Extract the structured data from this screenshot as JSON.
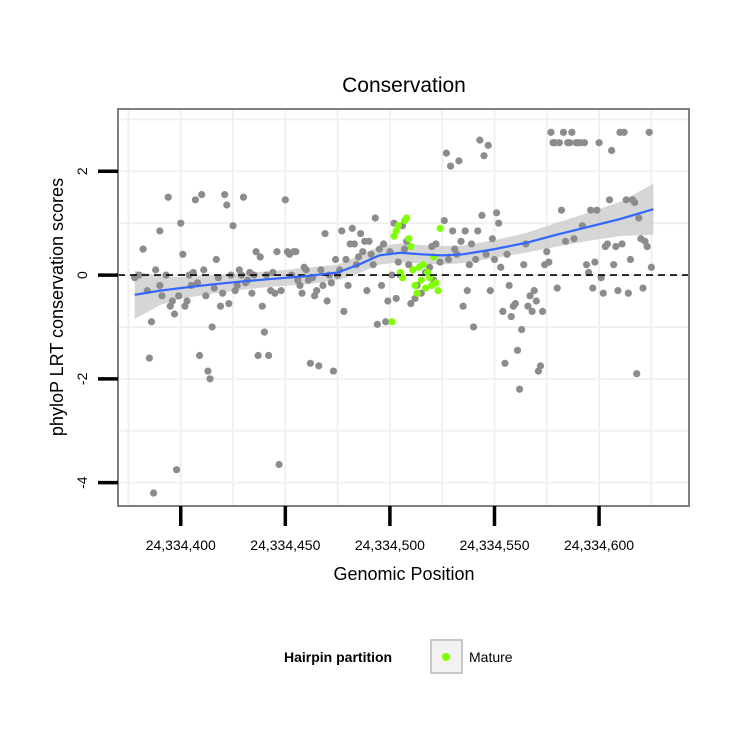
{
  "chart_data": {
    "type": "scatter",
    "title": "Conservation",
    "xlabel": "Genomic Position",
    "ylabel": "phyloP LRT conservation scores",
    "xlim": [
      24334370,
      24334643
    ],
    "ylim": [
      -4.45,
      3.2
    ],
    "x_ticks": [
      24334400,
      24334450,
      24334500,
      24334550,
      24334600
    ],
    "x_tick_labels": [
      "24,334,400",
      "24,334,450",
      "24,334,500",
      "24,334,550",
      "24,334,600"
    ],
    "y_ticks": [
      2,
      0,
      -2,
      -4
    ],
    "y_tick_labels": [
      "2",
      "0",
      "-2",
      "-4"
    ],
    "grid": true,
    "reference_line": {
      "y": 0,
      "style": "dashed"
    },
    "legend": {
      "title": "Hairpin partition",
      "position": "bottom",
      "entries": [
        "Mature"
      ]
    },
    "colors": {
      "other": "#8c8c8c",
      "mature": "#7fff00",
      "smooth": "#3366ff",
      "ribbon": "#cccccc",
      "panel_border": "#7f7f7f",
      "grid": "#f0f0f0"
    },
    "series": [
      {
        "name": "",
        "points": [
          [
            24334382,
            0.5
          ],
          [
            24334384,
            -0.3
          ],
          [
            24334385,
            -1.6
          ],
          [
            24334386,
            -0.9
          ],
          [
            24334388,
            0.1
          ],
          [
            24334390,
            0.85
          ],
          [
            24334390,
            -0.2
          ],
          [
            24334391,
            -0.4
          ],
          [
            24334393,
            0
          ],
          [
            24334394,
            1.5
          ],
          [
            24334395,
            -0.6
          ],
          [
            24334396,
            -0.5
          ],
          [
            24334397,
            -0.75
          ],
          [
            24334398,
            -3.75
          ],
          [
            24334399,
            -0.4
          ],
          [
            24334400,
            1
          ],
          [
            24334401,
            0.4
          ],
          [
            24334402,
            -0.6
          ],
          [
            24334404,
            0
          ],
          [
            24334405,
            -0.2
          ],
          [
            24334406,
            0.05
          ],
          [
            24334407,
            1.45
          ],
          [
            24334408,
            -0.15
          ],
          [
            24334409,
            -1.55
          ],
          [
            24334410,
            1.55
          ],
          [
            24334411,
            0.1
          ],
          [
            24334412,
            -0.4
          ],
          [
            24334413,
            -1.85
          ],
          [
            24334414,
            -2
          ],
          [
            24334415,
            -1
          ],
          [
            24334416,
            -0.25
          ],
          [
            24334417,
            0.3
          ],
          [
            24334418,
            -0.05
          ],
          [
            24334419,
            -0.6
          ],
          [
            24334420,
            -0.35
          ],
          [
            24334421,
            1.55
          ],
          [
            24334422,
            1.35
          ],
          [
            24334423,
            -0.55
          ],
          [
            24334424,
            0
          ],
          [
            24334425,
            0.95
          ],
          [
            24334426,
            -0.3
          ],
          [
            24334427,
            -0.2
          ],
          [
            24334428,
            0.1
          ],
          [
            24334429,
            0
          ],
          [
            24334430,
            1.5
          ],
          [
            24334431,
            -0.15
          ],
          [
            24334432,
            -0.1
          ],
          [
            24334434,
            -0.35
          ],
          [
            24334435,
            0
          ],
          [
            24334436,
            0.45
          ],
          [
            24334437,
            -1.55
          ],
          [
            24334438,
            0.35
          ],
          [
            24334439,
            -0.6
          ],
          [
            24334440,
            -1.1
          ],
          [
            24334441,
            0
          ],
          [
            24334442,
            -1.55
          ],
          [
            24334443,
            -0.3
          ],
          [
            24334445,
            -0.35
          ],
          [
            24334446,
            0.45
          ],
          [
            24334447,
            -3.65
          ],
          [
            24334448,
            -0.3
          ],
          [
            24334450,
            1.45
          ],
          [
            24334451,
            0.45
          ],
          [
            24334452,
            0.4
          ],
          [
            24334453,
            0
          ],
          [
            24334454,
            0.45
          ],
          [
            24334455,
            0.45
          ],
          [
            24334456,
            -0.1
          ],
          [
            24334457,
            -0.2
          ],
          [
            24334458,
            -0.35
          ],
          [
            24334459,
            0.15
          ],
          [
            24334460,
            0.1
          ],
          [
            24334461,
            -0.1
          ],
          [
            24334462,
            -1.7
          ],
          [
            24334463,
            -0.05
          ],
          [
            24334464,
            -0.4
          ],
          [
            24334465,
            -0.3
          ],
          [
            24334466,
            -1.75
          ],
          [
            24334467,
            0.1
          ],
          [
            24334468,
            -0.2
          ],
          [
            24334469,
            0.8
          ],
          [
            24334470,
            -0.5
          ],
          [
            24334472,
            -0.15
          ],
          [
            24334473,
            -1.85
          ],
          [
            24334474,
            0.3
          ],
          [
            24334475,
            0
          ],
          [
            24334476,
            0.1
          ],
          [
            24334477,
            0.85
          ],
          [
            24334478,
            -0.7
          ],
          [
            24334479,
            0.3
          ],
          [
            24334480,
            -0.2
          ],
          [
            24334482,
            0.9
          ],
          [
            24334484,
            0.2
          ],
          [
            24334485,
            0.35
          ],
          [
            24334486,
            0.8
          ],
          [
            24334487,
            0.45
          ],
          [
            24334488,
            0.65
          ],
          [
            24334489,
            -0.3
          ],
          [
            24334490,
            0.65
          ],
          [
            24334491,
            0.4
          ],
          [
            24334492,
            0.2
          ],
          [
            24334493,
            1.1
          ],
          [
            24334494,
            -0.95
          ],
          [
            24334495,
            0.5
          ],
          [
            24334496,
            -0.2
          ],
          [
            24334497,
            0.6
          ],
          [
            24334498,
            -0.9
          ],
          [
            24334499,
            -0.5
          ],
          [
            24334500,
            0.45
          ],
          [
            24334501,
            0
          ],
          [
            24334502,
            1
          ],
          [
            24334503,
            -0.45
          ],
          [
            24334504,
            0.25
          ],
          [
            24334505,
            0
          ],
          [
            24334506,
            0.95
          ],
          [
            24334507,
            0.5
          ],
          [
            24334508,
            0.65
          ],
          [
            24334509,
            0.2
          ],
          [
            24334510,
            -0.55
          ],
          [
            24334511,
            0.1
          ],
          [
            24334513,
            -0.2
          ],
          [
            24334515,
            -0.35
          ],
          [
            24334517,
            0.05
          ],
          [
            24334519,
            0.15
          ],
          [
            24334520,
            0.55
          ],
          [
            24334521,
            -0.1
          ],
          [
            24334522,
            0.6
          ],
          [
            24334524,
            0.25
          ],
          [
            24334526,
            1.05
          ],
          [
            24334527,
            2.35
          ],
          [
            24334528,
            0.3
          ],
          [
            24334529,
            2.1
          ],
          [
            24334530,
            0.85
          ],
          [
            24334531,
            0.5
          ],
          [
            24334532,
            0.4
          ],
          [
            24334533,
            2.2
          ],
          [
            24334534,
            0.65
          ],
          [
            24334535,
            -0.6
          ],
          [
            24334536,
            0.85
          ],
          [
            24334537,
            -0.3
          ],
          [
            24334538,
            0.2
          ],
          [
            24334539,
            0.6
          ],
          [
            24334540,
            -1
          ],
          [
            24334541,
            0.3
          ],
          [
            24334542,
            0.85
          ],
          [
            24334543,
            2.6
          ],
          [
            24334544,
            1.15
          ],
          [
            24334545,
            2.3
          ],
          [
            24334546,
            0.4
          ],
          [
            24334547,
            2.5
          ],
          [
            24334548,
            -0.3
          ],
          [
            24334549,
            0.7
          ],
          [
            24334550,
            0.3
          ],
          [
            24334551,
            1.2
          ],
          [
            24334552,
            1
          ],
          [
            24334553,
            0.15
          ],
          [
            24334554,
            -0.7
          ],
          [
            24334555,
            -1.7
          ],
          [
            24334556,
            0.4
          ],
          [
            24334557,
            -0.2
          ],
          [
            24334558,
            -0.8
          ],
          [
            24334559,
            -0.6
          ],
          [
            24334560,
            -0.55
          ],
          [
            24334561,
            -1.45
          ],
          [
            24334562,
            -2.2
          ],
          [
            24334563,
            -1.05
          ],
          [
            24334564,
            0.2
          ],
          [
            24334565,
            0.6
          ],
          [
            24334566,
            -0.6
          ],
          [
            24334567,
            -0.4
          ],
          [
            24334568,
            -0.7
          ],
          [
            24334569,
            -0.3
          ],
          [
            24334570,
            -0.5
          ],
          [
            24334571,
            -1.85
          ],
          [
            24334572,
            -1.75
          ],
          [
            24334573,
            -0.7
          ],
          [
            24334574,
            0.2
          ],
          [
            24334575,
            0.45
          ],
          [
            24334576,
            0.25
          ],
          [
            24334577,
            2.75
          ],
          [
            24334578,
            2.55
          ],
          [
            24334579,
            2.55
          ],
          [
            24334580,
            -0.25
          ],
          [
            24334581,
            2.55
          ],
          [
            24334582,
            1.25
          ],
          [
            24334583,
            2.75
          ],
          [
            24334584,
            0.65
          ],
          [
            24334585,
            2.55
          ],
          [
            24334586,
            2.55
          ],
          [
            24334587,
            2.75
          ],
          [
            24334588,
            0.7
          ],
          [
            24334589,
            2.55
          ],
          [
            24334590,
            2.55
          ],
          [
            24334591,
            2.55
          ],
          [
            24334592,
            0.95
          ],
          [
            24334593,
            2.55
          ],
          [
            24334594,
            0.2
          ],
          [
            24334595,
            0.05
          ],
          [
            24334596,
            1.25
          ],
          [
            24334597,
            -0.25
          ],
          [
            24334598,
            0.25
          ],
          [
            24334599,
            1.25
          ],
          [
            24334600,
            2.55
          ],
          [
            24334601,
            -0.05
          ],
          [
            24334602,
            -0.35
          ],
          [
            24334603,
            0.55
          ],
          [
            24334604,
            0.6
          ],
          [
            24334605,
            1.45
          ],
          [
            24334606,
            2.4
          ],
          [
            24334607,
            0.2
          ],
          [
            24334608,
            0.55
          ],
          [
            24334609,
            -0.3
          ],
          [
            24334610,
            2.75
          ],
          [
            24334611,
            0.6
          ],
          [
            24334612,
            2.75
          ],
          [
            24334613,
            1.45
          ],
          [
            24334614,
            -0.35
          ],
          [
            24334615,
            0.3
          ],
          [
            24334616,
            1.45
          ],
          [
            24334617,
            1.4
          ],
          [
            24334618,
            -1.9
          ],
          [
            24334619,
            1.1
          ],
          [
            24334620,
            0.7
          ],
          [
            24334621,
            -0.25
          ],
          [
            24334622,
            0.65
          ],
          [
            24334623,
            0.55
          ],
          [
            24334624,
            2.75
          ],
          [
            24334625,
            0.15
          ],
          [
            24334378,
            -0.05
          ],
          [
            24334380,
            0
          ],
          [
            24334387,
            -4.2
          ],
          [
            24334403,
            -0.5
          ],
          [
            24334433,
            0.05
          ],
          [
            24334444,
            0.05
          ],
          [
            24334471,
            0
          ],
          [
            24334481,
            0.6
          ],
          [
            24334483,
            0.6
          ],
          [
            24334512,
            -0.45
          ]
        ]
      },
      {
        "name": "Mature",
        "points": [
          [
            24334501,
            -0.9
          ],
          [
            24334502,
            0.75
          ],
          [
            24334503,
            0.85
          ],
          [
            24334504,
            0.95
          ],
          [
            24334505,
            0.05
          ],
          [
            24334506,
            -0.05
          ],
          [
            24334507,
            1.05
          ],
          [
            24334508,
            1.1
          ],
          [
            24334509,
            0.7
          ],
          [
            24334510,
            0.55
          ],
          [
            24334511,
            0.1
          ],
          [
            24334512,
            -0.2
          ],
          [
            24334513,
            -0.35
          ],
          [
            24334514,
            0.15
          ],
          [
            24334515,
            -0.1
          ],
          [
            24334516,
            0.2
          ],
          [
            24334517,
            -0.25
          ],
          [
            24334518,
            0.05
          ],
          [
            24334519,
            -0.05
          ],
          [
            24334520,
            -0.2
          ],
          [
            24334521,
            0.35
          ],
          [
            24334522,
            -0.15
          ],
          [
            24334523,
            -0.3
          ],
          [
            24334524,
            0.9
          ]
        ]
      }
    ],
    "smooth": {
      "name": "",
      "x": [
        24334378,
        24334390,
        24334400,
        24334415,
        24334430,
        24334445,
        24334460,
        24334475,
        24334485,
        24334495,
        24334505,
        24334515,
        24334525,
        24334535,
        24334550,
        24334565,
        24334580,
        24334595,
        24334610,
        24334626
      ],
      "y": [
        -0.38,
        -0.3,
        -0.25,
        -0.18,
        -0.12,
        -0.07,
        -0.02,
        0.05,
        0.2,
        0.38,
        0.43,
        0.4,
        0.38,
        0.4,
        0.5,
        0.62,
        0.78,
        0.93,
        1.08,
        1.27
      ],
      "lower": [
        -0.85,
        -0.58,
        -0.46,
        -0.36,
        -0.28,
        -0.22,
        -0.18,
        -0.1,
        0.03,
        0.2,
        0.25,
        0.22,
        0.2,
        0.23,
        0.33,
        0.43,
        0.55,
        0.66,
        0.75,
        0.78
      ],
      "upper": [
        0.08,
        -0.02,
        -0.04,
        0.0,
        0.04,
        0.08,
        0.14,
        0.2,
        0.37,
        0.56,
        0.61,
        0.58,
        0.56,
        0.57,
        0.67,
        0.81,
        1.01,
        1.2,
        1.41,
        1.76
      ]
    }
  }
}
